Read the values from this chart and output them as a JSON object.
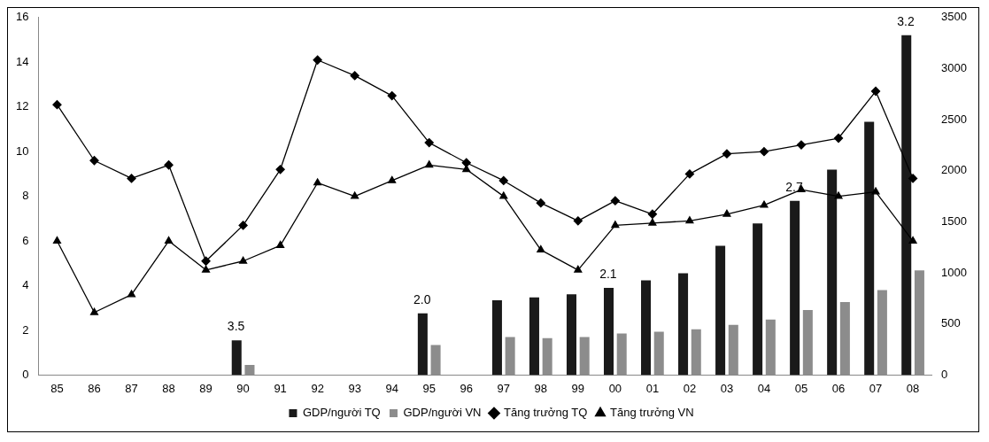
{
  "chart_data": {
    "type": "bar",
    "categories": [
      "85",
      "86",
      "87",
      "88",
      "89",
      "90",
      "91",
      "92",
      "93",
      "94",
      "95",
      "96",
      "97",
      "98",
      "99",
      "00",
      "01",
      "02",
      "03",
      "04",
      "05",
      "06",
      "07",
      "08"
    ],
    "series": [
      {
        "name": "GDP/người TQ",
        "axis": "y2",
        "color": "#1a1a1a",
        "values": [
          null,
          null,
          null,
          null,
          null,
          340,
          null,
          null,
          null,
          null,
          604,
          null,
          732,
          760,
          791,
          853,
          928,
          997,
          1265,
          1485,
          1705,
          2011,
          2479,
          3328
        ]
      },
      {
        "name": "GDP/người VN",
        "axis": "y2",
        "color": "#8c8c8c",
        "values": [
          null,
          null,
          null,
          null,
          null,
          98,
          null,
          null,
          null,
          null,
          293,
          null,
          371,
          361,
          371,
          406,
          423,
          447,
          492,
          543,
          636,
          715,
          832,
          1025
        ]
      },
      {
        "name": "Tăng trưởng TQ",
        "type": "line",
        "axis": "y",
        "color": "#000000",
        "marker": "diamond",
        "values": [
          12.1,
          9.6,
          8.8,
          9.4,
          5.1,
          6.7,
          9.2,
          14.1,
          13.4,
          12.5,
          10.4,
          9.5,
          8.7,
          7.7,
          6.9,
          7.8,
          7.2,
          9.0,
          9.9,
          10.0,
          10.3,
          10.6,
          12.7,
          8.8
        ]
      },
      {
        "name": "Tăng trưởng VN",
        "type": "line",
        "axis": "y",
        "color": "#000000",
        "marker": "triangle",
        "values": [
          6.0,
          2.8,
          3.6,
          6.0,
          4.7,
          5.1,
          5.8,
          8.6,
          8.0,
          8.7,
          9.4,
          9.2,
          8.0,
          5.6,
          4.7,
          6.7,
          6.8,
          6.9,
          7.2,
          7.6,
          8.3,
          8.0,
          8.2,
          6.0
        ]
      }
    ],
    "ylim": [
      0,
      16
    ],
    "yticks": [
      0,
      2,
      4,
      6,
      8,
      10,
      12,
      14,
      16
    ],
    "y2lim": [
      0,
      3500
    ],
    "y2ticks": [
      0,
      500,
      1000,
      1500,
      2000,
      2500,
      3000,
      3500
    ],
    "annotations": [
      {
        "text": "3.5",
        "x": "90",
        "y": 1.55
      },
      {
        "text": "2.0",
        "x": "95",
        "y": 2.76
      },
      {
        "text": "2.1",
        "x": "00",
        "y": 3.9
      },
      {
        "text": "2.7",
        "x": "05",
        "y": 7.8
      },
      {
        "text": "3.2",
        "x": "08",
        "y": 15.2
      }
    ],
    "grid": false,
    "legend": "bottom"
  }
}
